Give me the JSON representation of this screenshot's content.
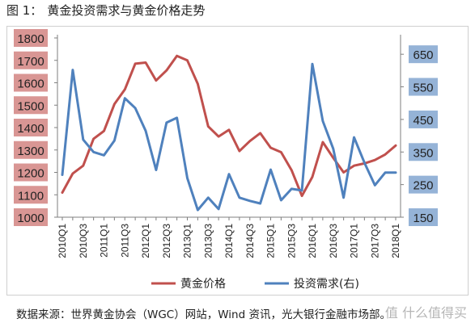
{
  "figure": {
    "number": "图 1：",
    "title": "黄金投资需求与黄金价格走势",
    "source": "数据来源：世界黄金协会（WGC）网站，Wind 资讯，光大银行金融市场部。",
    "watermark": "值 什么值得买"
  },
  "chart_data": {
    "type": "line",
    "x": [
      "2010Q1",
      "2010Q2",
      "2010Q3",
      "2010Q4",
      "2011Q1",
      "2011Q2",
      "2011Q3",
      "2011Q4",
      "2012Q1",
      "2012Q2",
      "2012Q3",
      "2012Q4",
      "2013Q1",
      "2013Q2",
      "2013Q3",
      "2013Q4",
      "2014Q1",
      "2014Q2",
      "2014Q3",
      "2014Q4",
      "2015Q1",
      "2015Q2",
      "2015Q3",
      "2015Q4",
      "2016Q1",
      "2016Q2",
      "2016Q3",
      "2016Q4",
      "2017Q1",
      "2017Q2",
      "2017Q3",
      "2017Q4",
      "2018Q1"
    ],
    "x_tick_labels": [
      "2010Q1",
      "2010Q3",
      "2011Q1",
      "2011Q3",
      "2012Q1",
      "2012Q3",
      "2013Q1",
      "2013Q3",
      "2014Q1",
      "2014Q3",
      "2015Q1",
      "2015Q3",
      "2016Q1",
      "2016Q3",
      "2017Q1",
      "2017Q3",
      "2018Q1"
    ],
    "y_left": {
      "ylim": [
        1000,
        1800
      ],
      "ticks": [
        "1000",
        "1100",
        "1200",
        "1300",
        "1400",
        "1500",
        "1600",
        "1700",
        "1800"
      ]
    },
    "y_right": {
      "ylim": [
        150,
        700
      ],
      "ticks": [
        "150",
        "250",
        "350",
        "450",
        "550",
        "650"
      ]
    },
    "series": [
      {
        "name": "黄金价格",
        "axis": "left",
        "color": "#c0504d",
        "values": [
          1110,
          1195,
          1230,
          1350,
          1385,
          1505,
          1570,
          1685,
          1690,
          1610,
          1655,
          1720,
          1700,
          1595,
          1405,
          1360,
          1390,
          1295,
          1340,
          1375,
          1310,
          1290,
          1210,
          1095,
          1180,
          1335,
          1265,
          1200,
          1230,
          1240,
          1255,
          1280,
          1320
        ]
      },
      {
        "name": "投资需求(右)",
        "axis": "right",
        "color": "#4f81bd",
        "values": [
          280,
          602,
          388,
          350,
          340,
          385,
          515,
          485,
          415,
          295,
          440,
          455,
          270,
          172,
          210,
          175,
          282,
          210,
          200,
          192,
          296,
          202,
          237,
          232,
          620,
          445,
          360,
          210,
          395,
          317,
          248,
          287,
          287
        ]
      }
    ],
    "legend_position": "bottom",
    "grid": false,
    "left_axis_bg": "#d99694",
    "right_axis_bg": "#95b3d7"
  }
}
